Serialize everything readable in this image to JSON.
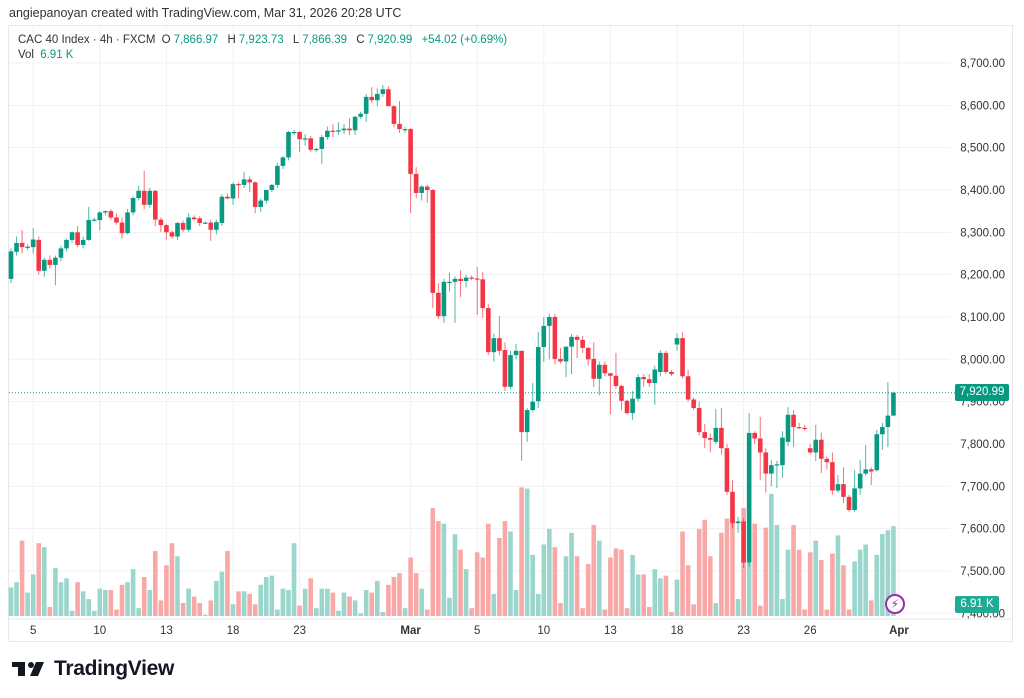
{
  "credit": "angiepanoyan created with TradingView.com, Mar 31, 2026 20:28 UTC",
  "legend": {
    "symbol": "CAC 40 Index · 4h · FXCM",
    "o_label": "O",
    "o": "7,866.97",
    "h_label": "H",
    "h": "7,923.73",
    "l_label": "L",
    "l": "7,866.39",
    "c_label": "C",
    "c": "7,920.99",
    "change": "+54.02 (+0.69%)",
    "vol_label": "Vol",
    "vol": "6.91 K"
  },
  "last_price_tag": "7,920.99",
  "volume_tag": "6.91 K",
  "logo_text": "TradingView",
  "colors": {
    "up": "#089981",
    "down": "#F23645",
    "vol_up": "#9bd6cc",
    "vol_down": "#f8a9a7",
    "grid": "#f0f1f3"
  },
  "chart_data": {
    "type": "candlestick",
    "title": "CAC 40 Index · 4h · FXCM",
    "ylim": [
      7400,
      8700
    ],
    "y_ticks": [
      "8,700.00",
      "8,600.00",
      "8,500.00",
      "8,400.00",
      "8,300.00",
      "8,200.00",
      "8,100.00",
      "8,000.00",
      "7,900.00",
      "7,800.00",
      "7,700.00",
      "7,600.00",
      "7,500.00",
      "7,400.00"
    ],
    "y_tick_values": [
      8700,
      8600,
      8500,
      8400,
      8300,
      8200,
      8100,
      8000,
      7900,
      7800,
      7700,
      7600,
      7500,
      7400
    ],
    "x_ticks": [
      {
        "label": "5",
        "index": 4
      },
      {
        "label": "10",
        "index": 16
      },
      {
        "label": "13",
        "index": 28
      },
      {
        "label": "18",
        "index": 40
      },
      {
        "label": "23",
        "index": 52
      },
      {
        "label": "Mar",
        "index": 72,
        "bold": true
      },
      {
        "label": "5",
        "index": 84
      },
      {
        "label": "10",
        "index": 96
      },
      {
        "label": "13",
        "index": 108
      },
      {
        "label": "18",
        "index": 120
      },
      {
        "label": "23",
        "index": 132
      },
      {
        "label": "26",
        "index": 144
      },
      {
        "label": "Apr",
        "index": 160,
        "bold": true
      }
    ],
    "grid": true,
    "last_price": 7920.99,
    "ohlc": [
      [
        8190,
        8262,
        8180,
        8255
      ],
      [
        8254,
        8290,
        8245,
        8275
      ],
      [
        8275,
        8305,
        8250,
        8265
      ],
      [
        8265,
        8272,
        8258,
        8266
      ],
      [
        8265,
        8310,
        8250,
        8283
      ],
      [
        8282,
        8290,
        8200,
        8209
      ],
      [
        8209,
        8240,
        8195,
        8235
      ],
      [
        8235,
        8245,
        8215,
        8223
      ],
      [
        8223,
        8245,
        8175,
        8240
      ],
      [
        8240,
        8268,
        8232,
        8262
      ],
      [
        8262,
        8285,
        8255,
        8282
      ],
      [
        8282,
        8302,
        8275,
        8300
      ],
      [
        8300,
        8315,
        8265,
        8270
      ],
      [
        8270,
        8290,
        8262,
        8282
      ],
      [
        8282,
        8360,
        8280,
        8329
      ],
      [
        8329,
        8335,
        8325,
        8330
      ],
      [
        8329,
        8350,
        8305,
        8347
      ],
      [
        8347,
        8352,
        8340,
        8350
      ],
      [
        8350,
        8355,
        8330,
        8335
      ],
      [
        8335,
        8345,
        8318,
        8323
      ],
      [
        8323,
        8335,
        8285,
        8298
      ],
      [
        8298,
        8355,
        8295,
        8347
      ],
      [
        8347,
        8385,
        8340,
        8381
      ],
      [
        8381,
        8410,
        8375,
        8398
      ],
      [
        8398,
        8445,
        8355,
        8365
      ],
      [
        8365,
        8405,
        8358,
        8398
      ],
      [
        8398,
        8400,
        8315,
        8330
      ],
      [
        8330,
        8335,
        8300,
        8317
      ],
      [
        8317,
        8320,
        8283,
        8300
      ],
      [
        8300,
        8305,
        8285,
        8290
      ],
      [
        8290,
        8325,
        8282,
        8322
      ],
      [
        8322,
        8328,
        8300,
        8306
      ],
      [
        8306,
        8345,
        8300,
        8335
      ],
      [
        8335,
        8340,
        8328,
        8331
      ],
      [
        8333,
        8338,
        8315,
        8322
      ],
      [
        8322,
        8326,
        8320,
        8323
      ],
      [
        8323,
        8330,
        8280,
        8306
      ],
      [
        8306,
        8330,
        8295,
        8324
      ],
      [
        8322,
        8390,
        8315,
        8384
      ],
      [
        8384,
        8392,
        8378,
        8380
      ],
      [
        8380,
        8418,
        8365,
        8414
      ],
      [
        8414,
        8418,
        8380,
        8412
      ],
      [
        8412,
        8443,
        8405,
        8425
      ],
      [
        8425,
        8432,
        8395,
        8418
      ],
      [
        8418,
        8420,
        8345,
        8360
      ],
      [
        8360,
        8380,
        8348,
        8375
      ],
      [
        8375,
        8400,
        8368,
        8400
      ],
      [
        8400,
        8415,
        8395,
        8412
      ],
      [
        8412,
        8465,
        8405,
        8457
      ],
      [
        8457,
        8480,
        8450,
        8477
      ],
      [
        8477,
        8540,
        8470,
        8537
      ],
      [
        8537,
        8542,
        8530,
        8537
      ],
      [
        8537,
        8540,
        8490,
        8520
      ],
      [
        8520,
        8532,
        8505,
        8522
      ],
      [
        8522,
        8528,
        8490,
        8495
      ],
      [
        8495,
        8500,
        8490,
        8497
      ],
      [
        8497,
        8530,
        8461,
        8525
      ],
      [
        8525,
        8550,
        8518,
        8540
      ],
      [
        8540,
        8555,
        8525,
        8538
      ],
      [
        8538,
        8560,
        8530,
        8541
      ],
      [
        8541,
        8556,
        8532,
        8545
      ],
      [
        8545,
        8570,
        8530,
        8541
      ],
      [
        8541,
        8575,
        8530,
        8573
      ],
      [
        8573,
        8585,
        8568,
        8580
      ],
      [
        8580,
        8627,
        8561,
        8620
      ],
      [
        8620,
        8643,
        8605,
        8612
      ],
      [
        8612,
        8640,
        8598,
        8627
      ],
      [
        8627,
        8648,
        8620,
        8638
      ],
      [
        8638,
        8645,
        8598,
        8598
      ],
      [
        8598,
        8600,
        8548,
        8556
      ],
      [
        8556,
        8610,
        8535,
        8544
      ],
      [
        8544,
        8548,
        8535,
        8544
      ],
      [
        8544,
        8546,
        8346,
        8438
      ],
      [
        8438,
        8454,
        8380,
        8393
      ],
      [
        8393,
        8412,
        8375,
        8408
      ],
      [
        8408,
        8412,
        8370,
        8400
      ],
      [
        8400,
        8402,
        8121,
        8157
      ],
      [
        8157,
        8180,
        8095,
        8102
      ],
      [
        8102,
        8190,
        8086,
        8183
      ],
      [
        8183,
        8205,
        8160,
        8183
      ],
      [
        8183,
        8196,
        8086,
        8190
      ],
      [
        8190,
        8210,
        8147,
        8185
      ],
      [
        8185,
        8200,
        8170,
        8193
      ],
      [
        8193,
        8198,
        8187,
        8191
      ],
      [
        8191,
        8218,
        8105,
        8189
      ],
      [
        8189,
        8206,
        8098,
        8121
      ],
      [
        8121,
        8130,
        8010,
        8017
      ],
      [
        8017,
        8061,
        7995,
        8050
      ],
      [
        8050,
        8102,
        8010,
        8020
      ],
      [
        8022,
        8040,
        7925,
        7935
      ],
      [
        7935,
        8020,
        7930,
        8010
      ],
      [
        8010,
        8036,
        8000,
        8020
      ],
      [
        8020,
        8020,
        7760,
        7828
      ],
      [
        7828,
        7885,
        7805,
        7880
      ],
      [
        7880,
        7944,
        7875,
        7900
      ],
      [
        7901,
        8065,
        7885,
        8029
      ],
      [
        8029,
        8100,
        7994,
        8079
      ],
      [
        8079,
        8108,
        8000,
        8100
      ],
      [
        8100,
        8107,
        7988,
        8001
      ],
      [
        8001,
        8027,
        7990,
        7995
      ],
      [
        7995,
        8030,
        7958,
        8030
      ],
      [
        8030,
        8060,
        7965,
        8053
      ],
      [
        8053,
        8058,
        8003,
        8046
      ],
      [
        8046,
        8055,
        8015,
        8027
      ],
      [
        8027,
        8030,
        7985,
        8000
      ],
      [
        8001,
        8040,
        7935,
        7954
      ],
      [
        7954,
        7995,
        7915,
        7987
      ],
      [
        7987,
        7995,
        7960,
        7967
      ],
      [
        7967,
        7968,
        7870,
        7961
      ],
      [
        7961,
        8015,
        7930,
        7937
      ],
      [
        7937,
        7940,
        7880,
        7902
      ],
      [
        7902,
        7905,
        7870,
        7873
      ],
      [
        7873,
        7925,
        7857,
        7907
      ],
      [
        7907,
        7965,
        7900,
        7958
      ],
      [
        7958,
        7965,
        7935,
        7953
      ],
      [
        7953,
        7965,
        7935,
        7944
      ],
      [
        7944,
        7985,
        7893,
        7976
      ],
      [
        7970,
        8022,
        7960,
        8015
      ],
      [
        8015,
        8020,
        7965,
        7970
      ],
      [
        7970,
        7975,
        7960,
        7965
      ],
      [
        8035,
        8062,
        8020,
        8050
      ],
      [
        8050,
        8064,
        7955,
        7960
      ],
      [
        7960,
        7975,
        7900,
        7905
      ],
      [
        7905,
        7910,
        7880,
        7885
      ],
      [
        7885,
        7900,
        7820,
        7828
      ],
      [
        7828,
        7847,
        7790,
        7814
      ],
      [
        7814,
        7825,
        7780,
        7810
      ],
      [
        7805,
        7883,
        7800,
        7838
      ],
      [
        7838,
        7885,
        7775,
        7790
      ],
      [
        7790,
        7800,
        7680,
        7687
      ],
      [
        7687,
        7715,
        7600,
        7613
      ],
      [
        7613,
        7628,
        7590,
        7617
      ],
      [
        7617,
        7625,
        7507,
        7520
      ],
      [
        7520,
        7873,
        7510,
        7826
      ],
      [
        7826,
        7830,
        7800,
        7813
      ],
      [
        7813,
        7864,
        7714,
        7780
      ],
      [
        7780,
        7790,
        7685,
        7730
      ],
      [
        7730,
        7762,
        7700,
        7750
      ],
      [
        7750,
        7760,
        7696,
        7752
      ],
      [
        7750,
        7830,
        7720,
        7815
      ],
      [
        7805,
        7887,
        7795,
        7869
      ],
      [
        7869,
        7880,
        7793,
        7840
      ],
      [
        7840,
        7850,
        7835,
        7838
      ],
      [
        7838,
        7845,
        7832,
        7836
      ],
      [
        7790,
        7800,
        7775,
        7780
      ],
      [
        7780,
        7845,
        7760,
        7810
      ],
      [
        7810,
        7827,
        7731,
        7765
      ],
      [
        7765,
        7770,
        7740,
        7757
      ],
      [
        7757,
        7780,
        7680,
        7690
      ],
      [
        7690,
        7727,
        7685,
        7705
      ],
      [
        7705,
        7745,
        7660,
        7675
      ],
      [
        7675,
        7680,
        7640,
        7644
      ],
      [
        7644,
        7738,
        7640,
        7695
      ],
      [
        7695,
        7762,
        7680,
        7730
      ],
      [
        7730,
        7797,
        7725,
        7740
      ],
      [
        7740,
        7745,
        7703,
        7735
      ],
      [
        7738,
        7833,
        7735,
        7823
      ],
      [
        7823,
        7850,
        7786,
        7840
      ],
      [
        7840,
        7946,
        7793,
        7866.97
      ],
      [
        7866.97,
        7923.73,
        7866.39,
        7920.99
      ]
    ],
    "volume_k": [
      2.2,
      2.6,
      5.8,
      1.8,
      3.2,
      5.6,
      5.3,
      0.7,
      3.7,
      2.6,
      2.9,
      0.4,
      2.6,
      1.9,
      1.3,
      0.4,
      2.1,
      2.0,
      2.0,
      0.5,
      2.4,
      2.6,
      3.6,
      0.6,
      3.0,
      2.0,
      5.0,
      1.2,
      3.9,
      5.6,
      4.6,
      1.0,
      2.1,
      1.5,
      1.0,
      0.1,
      1.2,
      2.7,
      3.4,
      5.0,
      0.9,
      1.9,
      1.9,
      1.7,
      0.9,
      2.4,
      3.0,
      3.1,
      0.5,
      2.1,
      2.0,
      5.6,
      0.8,
      2.1,
      2.9,
      0.6,
      2.1,
      2.1,
      1.8,
      0.4,
      1.8,
      1.5,
      1.2,
      0.2,
      2.0,
      1.8,
      2.7,
      0.3,
      2.4,
      3.0,
      3.3,
      0.6,
      4.5,
      3.3,
      2.1,
      0.5,
      8.3,
      7.3,
      7.1,
      1.4,
      6.3,
      5.1,
      3.6,
      0.6,
      4.9,
      4.5,
      7.1,
      1.7,
      6.0,
      7.3,
      6.5,
      2.0,
      9.9,
      9.8,
      4.7,
      1.7,
      5.5,
      6.7,
      5.3,
      1.0,
      4.6,
      6.4,
      4.6,
      0.6,
      4.0,
      7.0,
      5.8,
      0.5,
      4.5,
      5.2,
      5.1,
      0.6,
      4.7,
      3.2,
      3.2,
      0.7,
      3.6,
      2.9,
      3.1,
      0.3,
      2.8,
      6.5,
      3.9,
      0.9,
      6.7,
      7.4,
      4.6,
      1.0,
      6.4,
      7.5,
      9.0,
      1.3,
      8.3,
      4.1,
      7.1,
      0.8,
      6.8,
      9.4,
      7.0,
      1.3,
      5.1,
      7.0,
      5.1,
      0.5,
      4.9,
      5.8,
      4.3,
      0.5,
      4.8,
      6.2,
      3.9,
      0.5,
      4.2,
      5.1,
      5.5,
      1.2,
      4.7,
      6.3,
      6.6,
      6.91
    ]
  }
}
